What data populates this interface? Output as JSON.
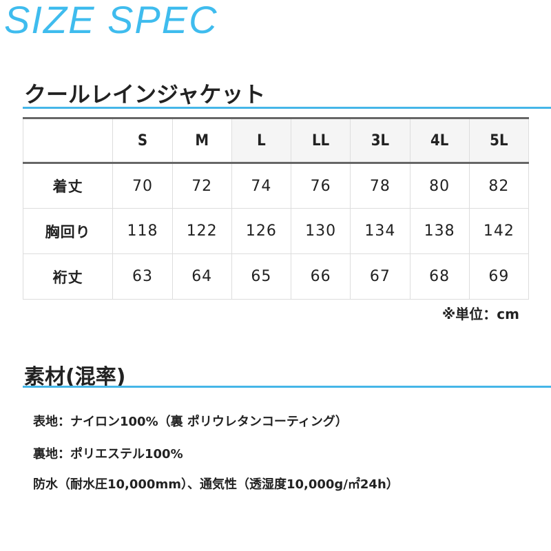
{
  "brand": "SIZE SPEC",
  "product_title": "クールレインジャケット",
  "table": {
    "headers": [
      "S",
      "M",
      "L",
      "LL",
      "3L",
      "4L",
      "5L"
    ],
    "rows": [
      {
        "label": "着丈",
        "values": [
          "70",
          "72",
          "74",
          "76",
          "78",
          "80",
          "82"
        ]
      },
      {
        "label": "胸回り",
        "values": [
          "118",
          "122",
          "126",
          "130",
          "134",
          "138",
          "142"
        ]
      },
      {
        "label": "裄丈",
        "values": [
          "63",
          "64",
          "65",
          "66",
          "67",
          "68",
          "69"
        ]
      }
    ]
  },
  "unit_note": "※単位：cm",
  "material": {
    "title": "素材(混率)",
    "lines": [
      "表地：ナイロン100%（裏 ポリウレタンコーティング）",
      "裏地：ポリエステル100%",
      "防水（耐水圧10,000mm）、通気性（透湿度10,000g/㎡24h）"
    ]
  },
  "colors": {
    "accent": "#45b6e8",
    "brand": "#3fbcee"
  }
}
